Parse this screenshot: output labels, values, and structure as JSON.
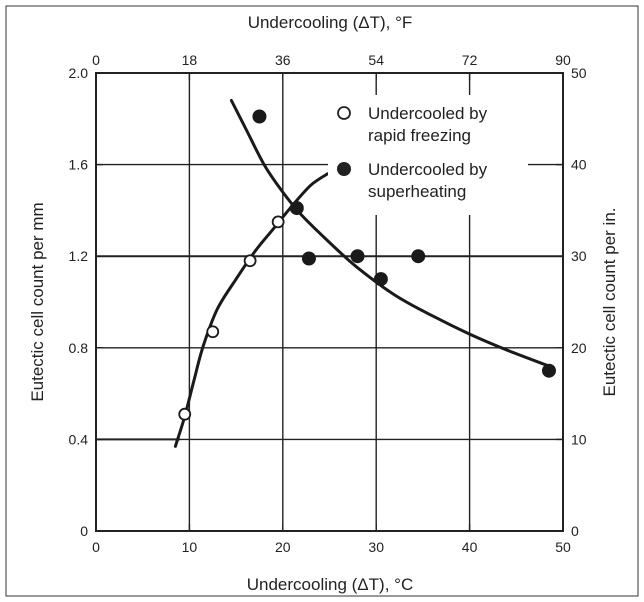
{
  "chart_data": {
    "type": "scatter",
    "axes": {
      "x_bottom": {
        "label": "Undercooling (ΔT), °C",
        "range": [
          0,
          50
        ],
        "ticks": [
          "0",
          "10",
          "20",
          "30",
          "40",
          "50"
        ]
      },
      "x_top": {
        "label": "Undercooling (ΔT), °F",
        "range": [
          0,
          90
        ],
        "ticks": [
          "0",
          "18",
          "36",
          "54",
          "72",
          "90"
        ]
      },
      "y_left": {
        "label": "Eutectic cell count per mm",
        "range": [
          0,
          2.0
        ],
        "ticks": [
          "0",
          "0.4",
          "0.8",
          "1.2",
          "1.6",
          "2.0"
        ]
      },
      "y_right": {
        "label": "Eutectic cell count per in.",
        "range": [
          0,
          50
        ],
        "ticks": [
          "0",
          "10",
          "20",
          "30",
          "40",
          "50"
        ]
      }
    },
    "grid": true,
    "legend_position": "top-right",
    "series": [
      {
        "name": "Undercooled by rapid freezing",
        "marker": "open-circle",
        "points": [
          {
            "x": 9.5,
            "y": 0.51
          },
          {
            "x": 12.5,
            "y": 0.87
          },
          {
            "x": 16.5,
            "y": 1.18
          },
          {
            "x": 19.5,
            "y": 1.35
          }
        ],
        "curve": [
          [
            8.5,
            0.37
          ],
          [
            9.5,
            0.5
          ],
          [
            10.5,
            0.66
          ],
          [
            11.5,
            0.81
          ],
          [
            13,
            0.97
          ],
          [
            15,
            1.1
          ],
          [
            17,
            1.22
          ],
          [
            19,
            1.32
          ],
          [
            21,
            1.42
          ],
          [
            23,
            1.51
          ],
          [
            24.8,
            1.56
          ]
        ]
      },
      {
        "name": "Undercooled by superheating",
        "marker": "filled-circle",
        "points": [
          {
            "x": 17.5,
            "y": 1.81
          },
          {
            "x": 21.5,
            "y": 1.41
          },
          {
            "x": 22.8,
            "y": 1.19
          },
          {
            "x": 28,
            "y": 1.2
          },
          {
            "x": 30.5,
            "y": 1.1
          },
          {
            "x": 34.5,
            "y": 1.2
          },
          {
            "x": 48.5,
            "y": 0.7
          }
        ],
        "curve": [
          [
            14.5,
            1.88
          ],
          [
            16,
            1.76
          ],
          [
            18,
            1.6
          ],
          [
            20,
            1.48
          ],
          [
            22,
            1.38
          ],
          [
            25,
            1.26
          ],
          [
            28,
            1.15
          ],
          [
            32,
            1.03
          ],
          [
            36,
            0.94
          ],
          [
            40,
            0.86
          ],
          [
            44,
            0.79
          ],
          [
            48.5,
            0.72
          ]
        ]
      }
    ],
    "reference_lines": [
      {
        "y": 0.4,
        "x_range": [
          0,
          9
        ]
      },
      {
        "y": 1.2,
        "x_range": [
          0,
          50
        ]
      }
    ]
  }
}
